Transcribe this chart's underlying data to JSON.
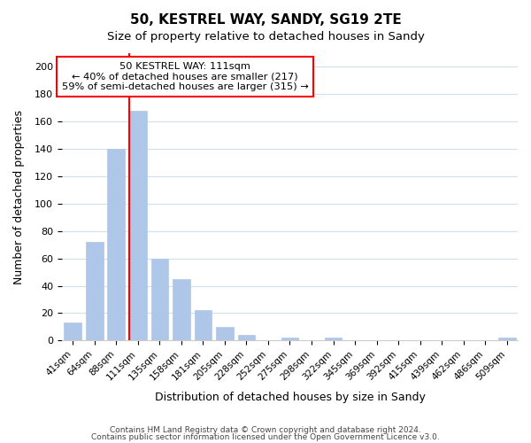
{
  "title": "50, KESTREL WAY, SANDY, SG19 2TE",
  "subtitle": "Size of property relative to detached houses in Sandy",
  "xlabel": "Distribution of detached houses by size in Sandy",
  "ylabel": "Number of detached properties",
  "bar_color": "#aec6e8",
  "bar_edge_color": "#aec6e8",
  "vline_x": 3,
  "vline_color": "red",
  "categories": [
    "41sqm",
    "64sqm",
    "88sqm",
    "111sqm",
    "135sqm",
    "158sqm",
    "181sqm",
    "205sqm",
    "228sqm",
    "252sqm",
    "275sqm",
    "298sqm",
    "322sqm",
    "345sqm",
    "369sqm",
    "392sqm",
    "415sqm",
    "439sqm",
    "462sqm",
    "486sqm",
    "509sqm"
  ],
  "values": [
    13,
    72,
    140,
    168,
    60,
    45,
    22,
    10,
    4,
    0,
    2,
    0,
    2,
    0,
    0,
    0,
    0,
    0,
    0,
    0,
    2
  ],
  "ylim": [
    0,
    210
  ],
  "yticks": [
    0,
    20,
    40,
    60,
    80,
    100,
    120,
    140,
    160,
    180,
    200
  ],
  "annotation_lines": [
    "50 KESTREL WAY: 111sqm",
    "← 40% of detached houses are smaller (217)",
    "59% of semi-detached houses are larger (315) →"
  ],
  "footer_line1": "Contains HM Land Registry data © Crown copyright and database right 2024.",
  "footer_line2": "Contains public sector information licensed under the Open Government Licence v3.0.",
  "background_color": "#ffffff",
  "grid_color": "#d0e0f0"
}
